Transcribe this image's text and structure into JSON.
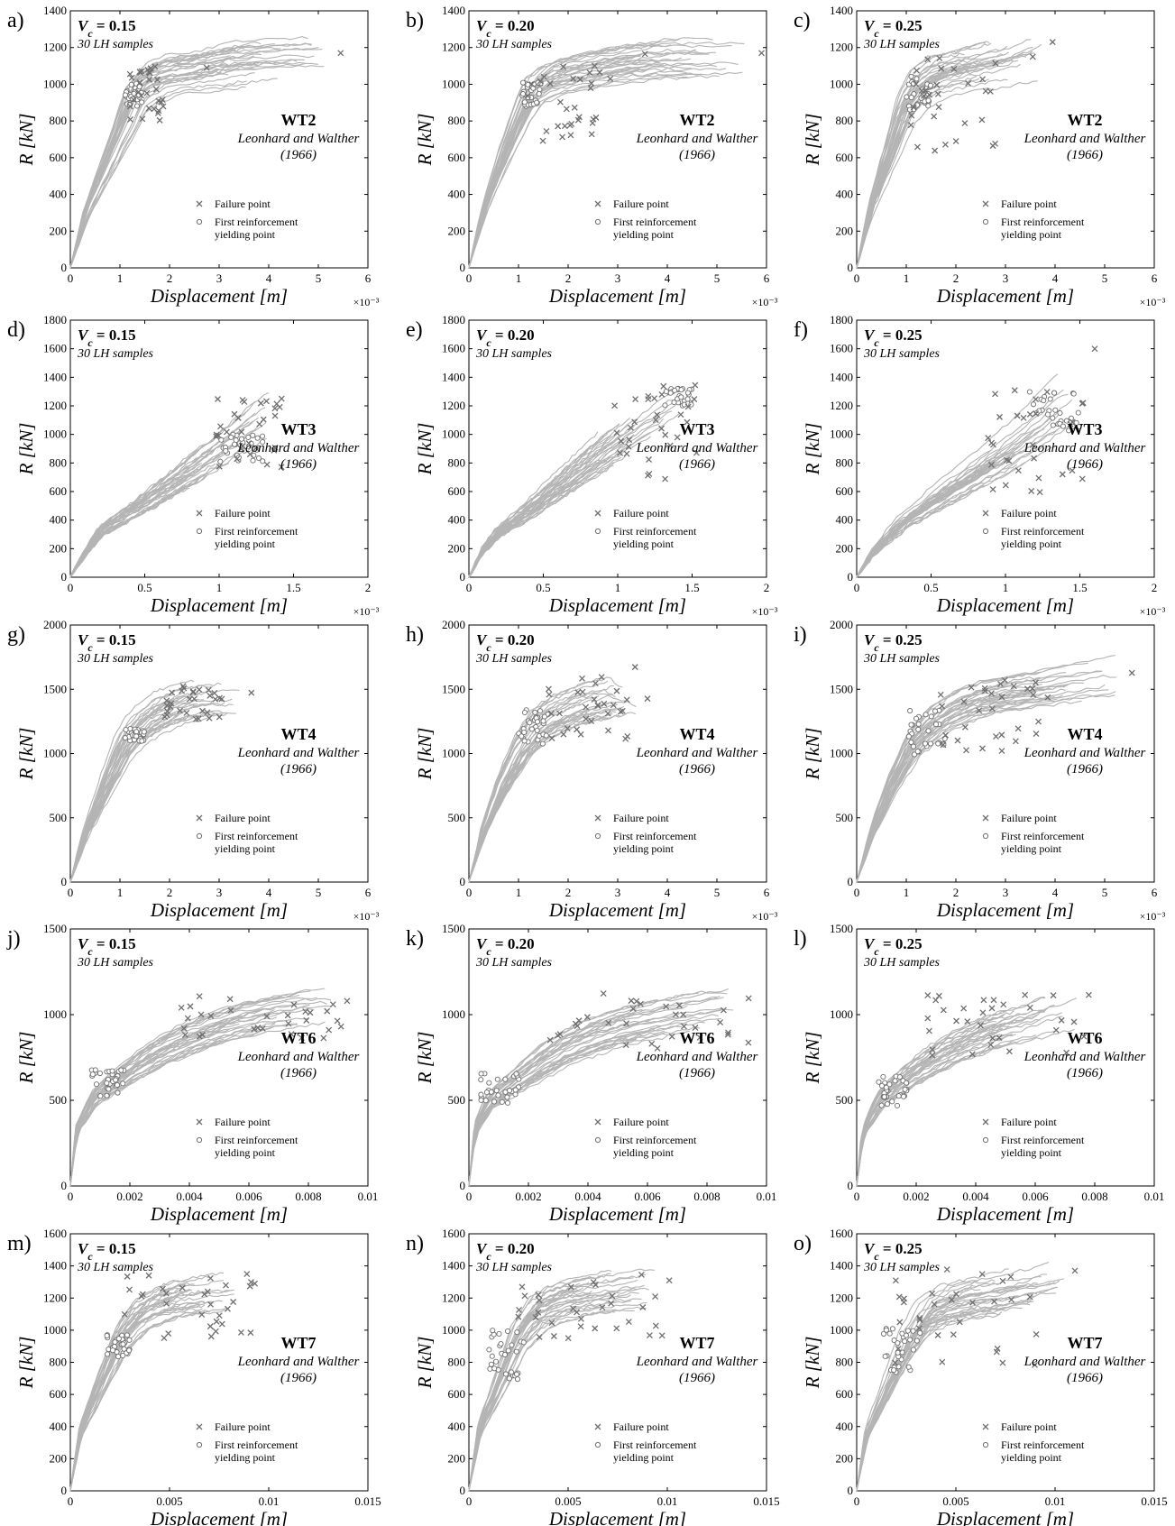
{
  "figure": {
    "xlabel": "Displacement [m]",
    "ylabel": "R [kN]",
    "samples_label": "30 LH samples",
    "specimen_source_line1": "Leonhard and Walther",
    "specimen_source_line2": "(1966)",
    "legend_failure": "Failure point",
    "legend_yield_line1": "First reinforcement",
    "legend_yield_line2": "yielding point",
    "curve_color": "#b4b4b4",
    "marker_color": "#6e6e6e"
  },
  "chart_data": [
    {
      "panel": "a)",
      "vc": "0.15",
      "specimen": "WT2",
      "type": "line",
      "xmax": 6,
      "ymax": 1400,
      "xticks": [
        "0",
        "1",
        "2",
        "3",
        "4",
        "5",
        "6"
      ],
      "yticks": [
        "0",
        "200",
        "400",
        "600",
        "800",
        "1000",
        "1200",
        "1400"
      ],
      "xexp": "×10⁻³",
      "curve": [
        [
          0,
          0
        ],
        [
          0.3,
          300
        ],
        [
          0.7,
          560
        ],
        [
          1.1,
          820
        ],
        [
          1.3,
          960
        ],
        [
          1.6,
          1030
        ],
        [
          1.9,
          1070
        ],
        [
          2.7,
          1095
        ],
        [
          3.3,
          1140
        ],
        [
          5.45,
          1170
        ]
      ],
      "yield_range": [
        [
          1.1,
          1.45
        ],
        [
          880,
          1010
        ]
      ],
      "failure_range": [
        [
          1.2,
          1.95
        ],
        [
          790,
          1100
        ]
      ],
      "outliers": [
        [
          2.75,
          1090
        ],
        [
          5.45,
          1170
        ]
      ]
    },
    {
      "panel": "b)",
      "vc": "0.20",
      "specimen": "WT2",
      "type": "line",
      "xmax": 6,
      "ymax": 1400,
      "xticks": [
        "0",
        "1",
        "2",
        "3",
        "4",
        "5",
        "6"
      ],
      "yticks": [
        "0",
        "200",
        "400",
        "600",
        "800",
        "1000",
        "1200",
        "1400"
      ],
      "xexp": "×10⁻³",
      "curve": [
        [
          0,
          0
        ],
        [
          0.3,
          320
        ],
        [
          0.7,
          620
        ],
        [
          1.1,
          880
        ],
        [
          1.3,
          990
        ],
        [
          1.7,
          1060
        ],
        [
          2.5,
          1110
        ],
        [
          3.6,
          1160
        ],
        [
          5.9,
          1170
        ]
      ],
      "yield_range": [
        [
          1.05,
          1.45
        ],
        [
          880,
          1010
        ]
      ],
      "failure_range": [
        [
          1.1,
          2.8
        ],
        [
          690,
          1150
        ]
      ],
      "outliers": [
        [
          3.55,
          1165
        ],
        [
          5.9,
          1170
        ],
        [
          2.85,
          1030
        ]
      ]
    },
    {
      "panel": "c)",
      "vc": "0.25",
      "specimen": "WT2",
      "type": "line",
      "xmax": 6,
      "ymax": 1400,
      "xticks": [
        "0",
        "1",
        "2",
        "3",
        "4",
        "5",
        "6"
      ],
      "yticks": [
        "0",
        "200",
        "400",
        "600",
        "800",
        "1000",
        "1200",
        "1400"
      ],
      "xexp": "×10⁻³",
      "curve": [
        [
          0,
          0
        ],
        [
          0.3,
          340
        ],
        [
          0.7,
          640
        ],
        [
          1.0,
          880
        ],
        [
          1.3,
          1000
        ],
        [
          1.7,
          1070
        ],
        [
          2.5,
          1110
        ],
        [
          3.3,
          1160
        ],
        [
          3.95,
          1230
        ]
      ],
      "yield_range": [
        [
          1.0,
          1.5
        ],
        [
          860,
          1050
        ]
      ],
      "failure_range": [
        [
          1.0,
          2.9
        ],
        [
          630,
          1150
        ]
      ],
      "outliers": [
        [
          3.95,
          1230
        ],
        [
          3.55,
          1150
        ]
      ]
    },
    {
      "panel": "d)",
      "vc": "0.15",
      "specimen": "WT3",
      "type": "line",
      "xmax": 2,
      "ymax": 1800,
      "xticks": [
        "0",
        "0.5",
        "1",
        "1.5",
        "2"
      ],
      "yticks": [
        "0",
        "200",
        "400",
        "600",
        "800",
        "1000",
        "1200",
        "1400",
        "1600",
        "1800"
      ],
      "xexp": "×10⁻³",
      "curve": [
        [
          0,
          0
        ],
        [
          0.1,
          180
        ],
        [
          0.2,
          330
        ],
        [
          0.3,
          400
        ],
        [
          0.5,
          540
        ],
        [
          0.8,
          760
        ],
        [
          1.1,
          990
        ],
        [
          1.42,
          1250
        ]
      ],
      "yield_range": [
        [
          1.0,
          1.3
        ],
        [
          780,
          1000
        ]
      ],
      "failure_range": [
        [
          0.98,
          1.42
        ],
        [
          760,
          1250
        ]
      ],
      "outliers": [
        [
          1.42,
          1250
        ]
      ]
    },
    {
      "panel": "e)",
      "vc": "0.20",
      "specimen": "WT3",
      "type": "line",
      "xmax": 2,
      "ymax": 1800,
      "xticks": [
        "0",
        "0.5",
        "1",
        "1.5",
        "2"
      ],
      "yticks": [
        "0",
        "200",
        "400",
        "600",
        "800",
        "1000",
        "1200",
        "1400",
        "1600",
        "1800"
      ],
      "xexp": "×10⁻³",
      "curve": [
        [
          0,
          0
        ],
        [
          0.1,
          200
        ],
        [
          0.2,
          320
        ],
        [
          0.4,
          470
        ],
        [
          0.7,
          720
        ],
        [
          1.0,
          960
        ],
        [
          1.3,
          1180
        ],
        [
          1.52,
          1340
        ]
      ],
      "yield_range": [
        [
          1.3,
          1.5
        ],
        [
          1200,
          1330
        ]
      ],
      "failure_range": [
        [
          0.95,
          1.55
        ],
        [
          680,
          1350
        ]
      ],
      "outliers": [
        [
          1.52,
          1345
        ]
      ]
    },
    {
      "panel": "f)",
      "vc": "0.25",
      "specimen": "WT3",
      "type": "line",
      "xmax": 2,
      "ymax": 1800,
      "xticks": [
        "0",
        "0.5",
        "1",
        "1.5",
        "2"
      ],
      "yticks": [
        "0",
        "200",
        "400",
        "600",
        "800",
        "1000",
        "1200",
        "1400",
        "1600",
        "1800"
      ],
      "xexp": "×10⁻³",
      "curve": [
        [
          0,
          0
        ],
        [
          0.1,
          170
        ],
        [
          0.3,
          390
        ],
        [
          0.6,
          610
        ],
        [
          0.9,
          820
        ],
        [
          1.2,
          1040
        ],
        [
          1.55,
          1340
        ]
      ],
      "yield_range": [
        [
          1.15,
          1.5
        ],
        [
          1000,
          1300
        ]
      ],
      "failure_range": [
        [
          0.85,
          1.55
        ],
        [
          560,
          1350
        ]
      ],
      "outliers": [
        [
          1.6,
          1600
        ]
      ]
    },
    {
      "panel": "g)",
      "vc": "0.15",
      "specimen": "WT4",
      "type": "line",
      "xmax": 6,
      "ymax": 2200,
      "xticks": [
        "0",
        "1",
        "2",
        "3",
        "4",
        "5",
        "6"
      ],
      "yticks": [
        "0",
        "500",
        "1000",
        "1500",
        "2000"
      ],
      "xexp": "×10⁻³",
      "curve": [
        [
          0,
          0
        ],
        [
          0.3,
          420
        ],
        [
          0.7,
          820
        ],
        [
          1.1,
          1200
        ],
        [
          1.4,
          1350
        ],
        [
          1.9,
          1500
        ],
        [
          2.5,
          1590
        ],
        [
          3.2,
          1620
        ],
        [
          3.65,
          1620
        ]
      ],
      "yield_range": [
        [
          1.1,
          1.5
        ],
        [
          1200,
          1320
        ]
      ],
      "failure_range": [
        [
          1.9,
          3.1
        ],
        [
          1380,
          1680
        ]
      ],
      "outliers": [
        [
          3.65,
          1620
        ]
      ]
    },
    {
      "panel": "h)",
      "vc": "0.20",
      "specimen": "WT4",
      "type": "line",
      "xmax": 6,
      "ymax": 2200,
      "xticks": [
        "0",
        "1",
        "2",
        "3",
        "4",
        "5",
        "6"
      ],
      "yticks": [
        "0",
        "500",
        "1000",
        "1500",
        "2000"
      ],
      "xexp": "×10⁻³",
      "curve": [
        [
          0,
          0
        ],
        [
          0.3,
          450
        ],
        [
          0.7,
          860
        ],
        [
          1.1,
          1180
        ],
        [
          1.5,
          1380
        ],
        [
          2.0,
          1500
        ],
        [
          2.6,
          1580
        ],
        [
          3.3,
          1640
        ],
        [
          3.6,
          1570
        ]
      ],
      "yield_range": [
        [
          1.0,
          1.6
        ],
        [
          1180,
          1480
        ]
      ],
      "failure_range": [
        [
          1.6,
          3.2
        ],
        [
          1220,
          1760
        ]
      ],
      "outliers": [
        [
          3.35,
          1840
        ],
        [
          3.6,
          1570
        ]
      ]
    },
    {
      "panel": "i)",
      "vc": "0.25",
      "specimen": "WT4",
      "type": "line",
      "xmax": 6,
      "ymax": 2200,
      "xticks": [
        "0",
        "1",
        "2",
        "3",
        "4",
        "5",
        "6"
      ],
      "yticks": [
        "0",
        "500",
        "1000",
        "1500",
        "2000"
      ],
      "xexp": "×10⁻³",
      "curve": [
        [
          0,
          0
        ],
        [
          0.3,
          420
        ],
        [
          0.7,
          820
        ],
        [
          1.1,
          1150
        ],
        [
          1.6,
          1380
        ],
        [
          2.2,
          1520
        ],
        [
          2.8,
          1600
        ],
        [
          3.8,
          1660
        ],
        [
          5.55,
          1790
        ]
      ],
      "yield_range": [
        [
          1.0,
          1.8
        ],
        [
          1080,
          1480
        ]
      ],
      "failure_range": [
        [
          1.6,
          3.7
        ],
        [
          1120,
          1750
        ]
      ],
      "outliers": [
        [
          5.55,
          1790
        ],
        [
          3.85,
          1580
        ]
      ]
    },
    {
      "panel": "j)",
      "vc": "0.15",
      "specimen": "WT6",
      "type": "line",
      "xmax": 0.01,
      "ymax": 1500,
      "xticks": [
        "0",
        "0.002",
        "0.004",
        "0.006",
        "0.008",
        "0.01"
      ],
      "yticks": [
        "0",
        "500",
        "1000",
        "1500"
      ],
      "xexp": "",
      "curve": [
        [
          0,
          0
        ],
        [
          0.0002,
          330
        ],
        [
          0.0008,
          520
        ],
        [
          0.0017,
          640
        ],
        [
          0.003,
          790
        ],
        [
          0.0045,
          910
        ],
        [
          0.006,
          990
        ],
        [
          0.0075,
          1040
        ],
        [
          0.0093,
          1080
        ]
      ],
      "yield_range": [
        [
          0.0007,
          0.0018
        ],
        [
          520,
          680
        ]
      ],
      "failure_range": [
        [
          0.0037,
          0.0093
        ],
        [
          840,
          1110
        ]
      ],
      "outliers": [
        [
          0.0093,
          1080
        ]
      ]
    },
    {
      "panel": "k)",
      "vc": "0.20",
      "specimen": "WT6",
      "type": "line",
      "xmax": 0.01,
      "ymax": 1500,
      "xticks": [
        "0",
        "0.002",
        "0.004",
        "0.006",
        "0.008",
        "0.01"
      ],
      "yticks": [
        "0",
        "500",
        "1000",
        "1500"
      ],
      "xexp": "",
      "curve": [
        [
          0,
          0
        ],
        [
          0.0002,
          340
        ],
        [
          0.0007,
          510
        ],
        [
          0.0017,
          640
        ],
        [
          0.003,
          800
        ],
        [
          0.0045,
          920
        ],
        [
          0.006,
          990
        ],
        [
          0.0075,
          1040
        ],
        [
          0.0094,
          1090
        ]
      ],
      "yield_range": [
        [
          0.0004,
          0.0017
        ],
        [
          470,
          660
        ]
      ],
      "failure_range": [
        [
          0.0027,
          0.0094
        ],
        [
          790,
          1130
        ]
      ],
      "outliers": [
        [
          0.0094,
          1095
        ]
      ]
    },
    {
      "panel": "l)",
      "vc": "0.25",
      "specimen": "WT6",
      "type": "line",
      "xmax": 0.01,
      "ymax": 1500,
      "xticks": [
        "0",
        "0.002",
        "0.004",
        "0.006",
        "0.008",
        "0.01"
      ],
      "yticks": [
        "0",
        "500",
        "1000",
        "1500"
      ],
      "xexp": "",
      "curve": [
        [
          0,
          0
        ],
        [
          0.0002,
          320
        ],
        [
          0.0008,
          520
        ],
        [
          0.0017,
          650
        ],
        [
          0.003,
          800
        ],
        [
          0.0045,
          920
        ],
        [
          0.006,
          990
        ],
        [
          0.0078,
          1110
        ]
      ],
      "yield_range": [
        [
          0.0006,
          0.0017
        ],
        [
          460,
          640
        ]
      ],
      "failure_range": [
        [
          0.0023,
          0.0078
        ],
        [
          760,
          1120
        ]
      ],
      "outliers": [
        [
          0.0078,
          1115
        ]
      ]
    },
    {
      "panel": "m)",
      "vc": "0.15",
      "specimen": "WT7",
      "type": "line",
      "xmax": 0.015,
      "ymax": 1600,
      "xticks": [
        "0",
        "0.005",
        "0.01",
        "0.015"
      ],
      "yticks": [
        "0",
        "200",
        "400",
        "600",
        "800",
        "1000",
        "1200",
        "1400",
        "1600"
      ],
      "xexp": "",
      "curve": [
        [
          0,
          0
        ],
        [
          0.0005,
          380
        ],
        [
          0.0015,
          680
        ],
        [
          0.0025,
          970
        ],
        [
          0.0035,
          1130
        ],
        [
          0.005,
          1220
        ],
        [
          0.007,
          1260
        ],
        [
          0.0093,
          1290
        ]
      ],
      "yield_range": [
        [
          0.0018,
          0.003
        ],
        [
          830,
          1000
        ]
      ],
      "failure_range": [
        [
          0.0027,
          0.0093
        ],
        [
          950,
          1350
        ]
      ],
      "outliers": [
        [
          0.0093,
          1290
        ],
        [
          0.0089,
          1350
        ]
      ]
    },
    {
      "panel": "n)",
      "vc": "0.20",
      "specimen": "WT7",
      "type": "line",
      "xmax": 0.015,
      "ymax": 1600,
      "xticks": [
        "0",
        "0.005",
        "0.01",
        "0.015"
      ],
      "yticks": [
        "0",
        "200",
        "400",
        "600",
        "800",
        "1000",
        "1200",
        "1400",
        "1600"
      ],
      "xexp": "",
      "curve": [
        [
          0,
          0
        ],
        [
          0.0005,
          380
        ],
        [
          0.0015,
          680
        ],
        [
          0.0025,
          980
        ],
        [
          0.0035,
          1140
        ],
        [
          0.005,
          1220
        ],
        [
          0.007,
          1260
        ],
        [
          0.01,
          1310
        ]
      ],
      "yield_range": [
        [
          0.001,
          0.0028
        ],
        [
          680,
          1000
        ]
      ],
      "failure_range": [
        [
          0.0022,
          0.01
        ],
        [
          900,
          1350
        ]
      ],
      "outliers": [
        [
          0.0101,
          1310
        ],
        [
          0.0087,
          1345
        ]
      ]
    },
    {
      "panel": "o)",
      "vc": "0.25",
      "specimen": "WT7",
      "type": "line",
      "xmax": 0.015,
      "ymax": 1600,
      "xticks": [
        "0",
        "0.005",
        "0.01",
        "0.015"
      ],
      "yticks": [
        "0",
        "200",
        "400",
        "600",
        "800",
        "1000",
        "1200",
        "1400",
        "1600"
      ],
      "xexp": "",
      "curve": [
        [
          0,
          0
        ],
        [
          0.0005,
          360
        ],
        [
          0.0015,
          640
        ],
        [
          0.0025,
          920
        ],
        [
          0.0035,
          1110
        ],
        [
          0.005,
          1200
        ],
        [
          0.007,
          1240
        ],
        [
          0.0098,
          1310
        ],
        [
          0.011,
          1370
        ]
      ],
      "yield_range": [
        [
          0.0013,
          0.0032
        ],
        [
          720,
          1010
        ]
      ],
      "failure_range": [
        [
          0.0018,
          0.0092
        ],
        [
          720,
          1380
        ]
      ],
      "outliers": [
        [
          0.011,
          1370
        ],
        [
          0.0078,
          1190
        ]
      ]
    }
  ]
}
